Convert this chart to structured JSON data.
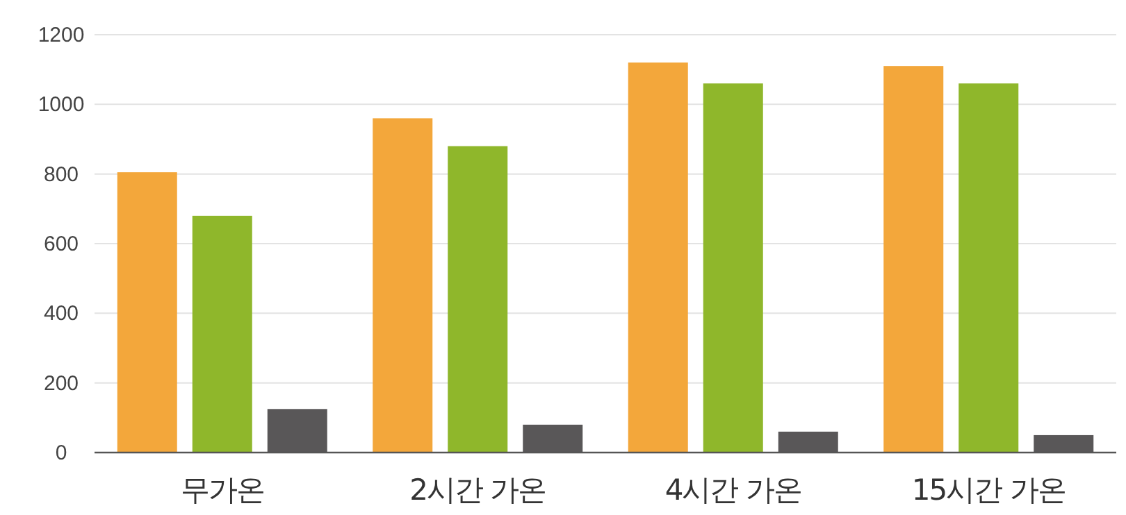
{
  "chart_data": {
    "type": "bar",
    "categories": [
      "무가온",
      "2시간 가온",
      "4시간 가온",
      "15시간 가온"
    ],
    "series": [
      {
        "color": "#f3a73b",
        "values": [
          805,
          960,
          1120,
          1110
        ]
      },
      {
        "color": "#8fb72b",
        "values": [
          680,
          880,
          1060,
          1060
        ]
      },
      {
        "color": "#595758",
        "values": [
          125,
          80,
          60,
          50
        ]
      }
    ],
    "ylim": [
      0,
      1200
    ],
    "yticks": [
      0,
      200,
      400,
      600,
      800,
      1000,
      1200
    ],
    "grid": "y"
  }
}
